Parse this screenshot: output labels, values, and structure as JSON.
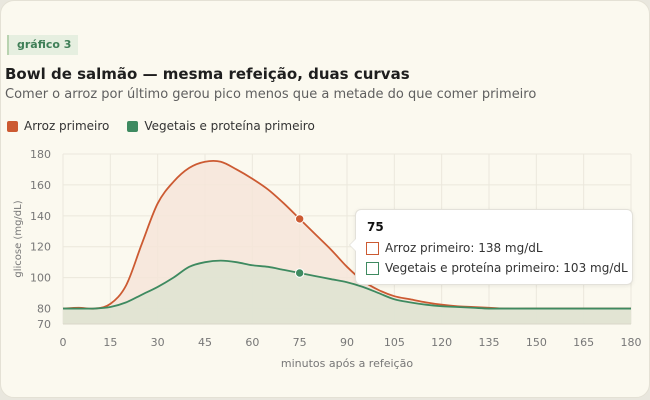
{
  "tag": "gráfico 3",
  "title": "Bowl de salmão — mesma refeição, duas curvas",
  "subtitle": "Comer o arroz por último gerou pico menos que a metade do que comer primeiro",
  "colors": {
    "rice_first": "#cc5a32",
    "veg_first": "#3e8a60",
    "rice_fill": "#f6e5d9",
    "veg_fill": "#dfe3d1"
  },
  "tooltip": {
    "title": "75",
    "rows": [
      "Arroz primeiro: 138 mg/dL",
      "Vegetais e proteína primeiro: 103 mg/dL"
    ]
  },
  "chart_data": {
    "type": "area",
    "xlabel": "minutos após a refeição",
    "ylabel": "glicose (mg/dL)",
    "xlim": [
      0,
      180
    ],
    "ylim": [
      70,
      180
    ],
    "x_ticks": [
      "0",
      "15",
      "30",
      "45",
      "60",
      "75",
      "90",
      "105",
      "120",
      "135",
      "150",
      "165",
      "180"
    ],
    "y_ticks": [
      "70",
      "80",
      "100",
      "120",
      "140",
      "160",
      "180"
    ],
    "grid": true,
    "legend": "top-left",
    "highlight_x": 75,
    "series": [
      {
        "name": "Arroz primeiro",
        "x": [
          0,
          5,
          10,
          15,
          20,
          25,
          30,
          35,
          40,
          45,
          50,
          55,
          60,
          65,
          70,
          75,
          80,
          85,
          90,
          95,
          100,
          105,
          110,
          115,
          120,
          125,
          130,
          135,
          140,
          150,
          160,
          170,
          180
        ],
        "values": [
          80,
          80.5,
          80,
          83,
          95,
          122,
          148,
          162,
          171,
          175,
          175,
          170,
          164,
          157,
          148,
          138,
          128,
          118,
          107,
          98,
          92,
          88,
          86,
          84,
          82.5,
          81.5,
          81,
          80.5,
          80,
          80,
          80,
          80,
          80
        ]
      },
      {
        "name": "Vegetais e proteína primeiro",
        "x": [
          0,
          5,
          10,
          15,
          20,
          25,
          30,
          35,
          40,
          45,
          50,
          55,
          60,
          65,
          70,
          75,
          80,
          85,
          90,
          95,
          100,
          105,
          110,
          115,
          120,
          125,
          130,
          135,
          140,
          150,
          160,
          170,
          180
        ],
        "values": [
          80,
          80,
          80,
          81,
          84,
          89,
          94,
          100,
          107,
          110,
          111,
          110,
          108,
          107,
          105,
          103,
          101,
          99,
          97,
          94,
          90,
          86,
          84,
          82.5,
          81.5,
          81,
          80.5,
          80,
          80,
          80,
          80,
          80,
          80
        ]
      }
    ]
  }
}
